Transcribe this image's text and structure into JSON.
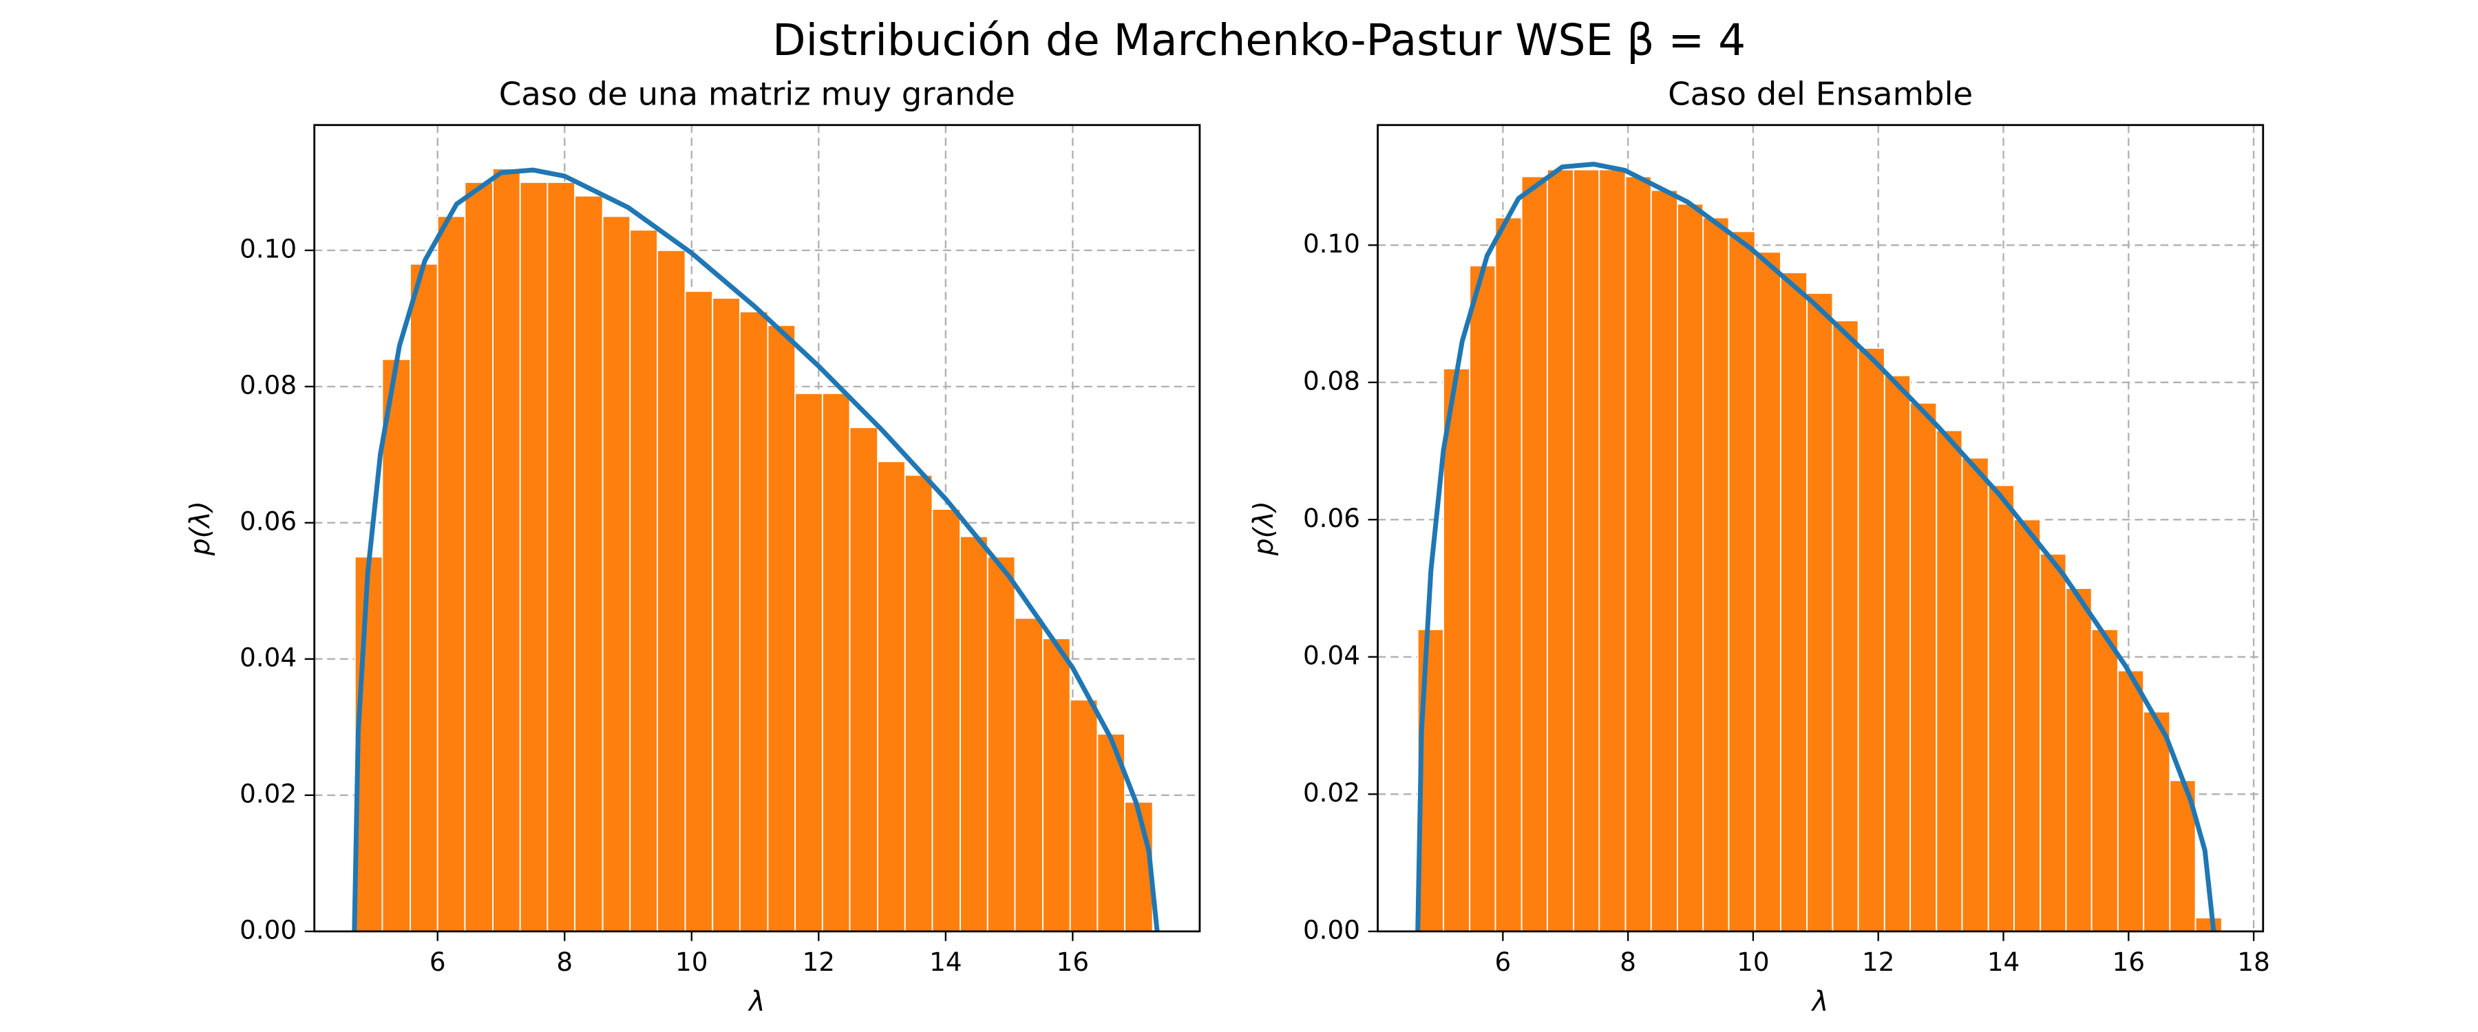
{
  "title": "Distribución de Marchenko-Pastur WSE β = 4",
  "chart_data": [
    {
      "type": "histogram",
      "title": "Caso de una matriz muy grande",
      "xlabel": "λ",
      "ylabel": "p(λ)",
      "bins": [
        4.7,
        5.13,
        5.57,
        6.0,
        6.43,
        6.87,
        7.3,
        7.73,
        8.16,
        8.6,
        9.03,
        9.46,
        9.9,
        10.33,
        10.76,
        11.2,
        11.63,
        12.06,
        12.49,
        12.93,
        13.36,
        13.79,
        14.23,
        14.66,
        15.09,
        15.53,
        15.96,
        16.39,
        16.82,
        17.26
      ],
      "values": [
        0.055,
        0.084,
        0.098,
        0.105,
        0.11,
        0.112,
        0.11,
        0.11,
        0.108,
        0.105,
        0.103,
        0.1,
        0.094,
        0.093,
        0.091,
        0.089,
        0.079,
        0.079,
        0.074,
        0.069,
        0.067,
        0.062,
        0.058,
        0.055,
        0.046,
        0.043,
        0.034,
        0.029,
        0.019
      ],
      "color": "#ff7f0e",
      "curve": {
        "color": "#1f77b4",
        "x": [
          4.69,
          4.75,
          4.9,
          5.1,
          5.4,
          5.8,
          6.3,
          7.0,
          7.5,
          8,
          9,
          10,
          11,
          12,
          13,
          14,
          15,
          16,
          16.6,
          17,
          17.2,
          17.33
        ],
        "y": [
          0,
          0.0292,
          0.0526,
          0.0701,
          0.086,
          0.0985,
          0.1068,
          0.1114,
          0.1118,
          0.1109,
          0.1063,
          0.0996,
          0.0917,
          0.083,
          0.0736,
          0.0635,
          0.0521,
          0.0387,
          0.0284,
          0.0189,
          0.0118,
          0
        ]
      },
      "xlim": [
        4.06,
        18.0
      ],
      "ylim": [
        0,
        0.1184
      ],
      "xticks": [
        6,
        8,
        10,
        12,
        14,
        16
      ],
      "yticks": [
        {
          "value": 0,
          "label": "0.00"
        },
        {
          "value": 0.02,
          "label": "0.02"
        },
        {
          "value": 0.04,
          "label": "0.04"
        },
        {
          "value": 0.06,
          "label": "0.06"
        },
        {
          "value": 0.08,
          "label": "0.08"
        },
        {
          "value": 0.1,
          "label": "0.10"
        }
      ],
      "grid": true
    },
    {
      "type": "histogram",
      "title": "Caso del Ensamble",
      "xlabel": "λ",
      "ylabel": "p(λ)",
      "bins": [
        4.64,
        5.05,
        5.47,
        5.88,
        6.3,
        6.71,
        7.13,
        7.54,
        7.96,
        8.37,
        8.79,
        9.2,
        9.61,
        10.03,
        10.44,
        10.86,
        11.27,
        11.68,
        12.1,
        12.51,
        12.93,
        13.34,
        13.76,
        14.17,
        14.59,
        15.0,
        15.41,
        15.83,
        16.24,
        16.66,
        17.07,
        17.49
      ],
      "values": [
        0.044,
        0.082,
        0.097,
        0.104,
        0.11,
        0.111,
        0.111,
        0.111,
        0.11,
        0.108,
        0.106,
        0.104,
        0.102,
        0.099,
        0.096,
        0.093,
        0.089,
        0.085,
        0.081,
        0.077,
        0.073,
        0.069,
        0.065,
        0.06,
        0.055,
        0.05,
        0.044,
        0.038,
        0.032,
        0.022,
        0.002
      ],
      "color": "#ff7f0e",
      "curve": {
        "color": "#1f77b4",
        "x": [
          4.64,
          4.7,
          4.85,
          5.05,
          5.35,
          5.75,
          6.25,
          6.95,
          7.45,
          7.95,
          8.95,
          9.95,
          10.95,
          11.95,
          12.95,
          13.95,
          14.95,
          15.95,
          16.6,
          17.0,
          17.22,
          17.36
        ],
        "y": [
          0,
          0.0292,
          0.0526,
          0.0701,
          0.086,
          0.0985,
          0.1068,
          0.1114,
          0.1118,
          0.1109,
          0.1063,
          0.0996,
          0.0917,
          0.083,
          0.0736,
          0.0635,
          0.0521,
          0.0387,
          0.0284,
          0.0189,
          0.0118,
          0
        ]
      },
      "xlim": [
        4.0,
        18.15
      ],
      "ylim": [
        0,
        0.1175
      ],
      "xticks": [
        6,
        8,
        10,
        12,
        14,
        16,
        18
      ],
      "yticks": [
        {
          "value": 0,
          "label": "0.00"
        },
        {
          "value": 0.02,
          "label": "0.02"
        },
        {
          "value": 0.04,
          "label": "0.04"
        },
        {
          "value": 0.06,
          "label": "0.06"
        },
        {
          "value": 0.08,
          "label": "0.08"
        },
        {
          "value": 0.1,
          "label": "0.10"
        }
      ],
      "grid": true
    }
  ]
}
